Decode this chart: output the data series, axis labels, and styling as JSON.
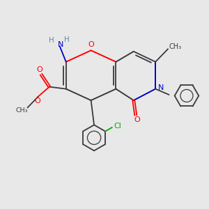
{
  "background_color": "#e8e8e8",
  "bond_color": "#3a3a3a",
  "oxygen_color": "#ff0000",
  "nitrogen_color": "#0000cc",
  "chlorine_color": "#00aa00",
  "figsize": [
    3.0,
    3.0
  ],
  "dpi": 100,
  "xlim": [
    0,
    10
  ],
  "ylim": [
    0,
    10
  ]
}
